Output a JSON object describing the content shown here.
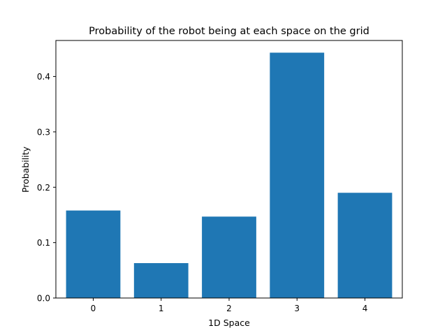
{
  "chart_data": {
    "type": "bar",
    "title": "Probability of the robot being at each space on the grid",
    "xlabel": "1D Space",
    "ylabel": "Probability",
    "categories": [
      "0",
      "1",
      "2",
      "3",
      "4"
    ],
    "values": [
      0.158,
      0.063,
      0.147,
      0.443,
      0.19
    ],
    "ylim": [
      0,
      0.465
    ],
    "yticks": [
      "0.0",
      "0.1",
      "0.2",
      "0.3",
      "0.4"
    ],
    "grid": false,
    "bar_color": "#1f77b4"
  }
}
